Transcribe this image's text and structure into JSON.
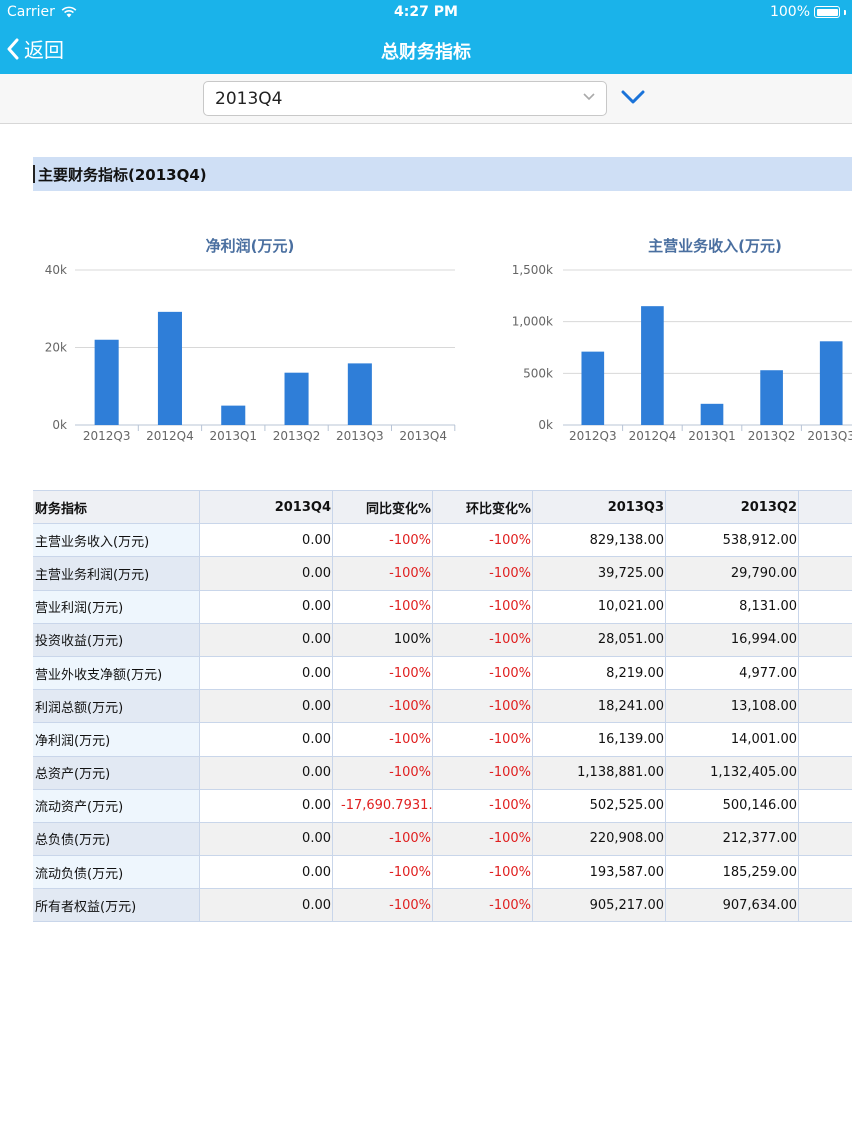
{
  "status_bar": {
    "carrier": "Carrier",
    "time": "4:27 PM",
    "battery": "100%"
  },
  "nav": {
    "back_label": "返回",
    "title": "总财务指标"
  },
  "period_select": {
    "value": "2013Q4"
  },
  "section": {
    "title": "主要财务指标(2013Q4)"
  },
  "colors": {
    "nav_bg": "#1ab3ea",
    "bar": "#2f7ed8",
    "negative": "#e02020",
    "section_bg": "#cfdff5",
    "chevron": "#1a73d9"
  },
  "chart_data": [
    {
      "type": "bar",
      "title": "净利润(万元)",
      "categories": [
        "2012Q3",
        "2012Q4",
        "2013Q1",
        "2013Q2",
        "2013Q3",
        "2013Q4"
      ],
      "values": [
        22000,
        29200,
        5000,
        13500,
        15900,
        0
      ],
      "ylim": [
        0,
        40000
      ],
      "yticks": [
        "0k",
        "20k",
        "40k"
      ],
      "grid": true
    },
    {
      "type": "bar",
      "title": "主营业务收入(万元)",
      "categories": [
        "2012Q3",
        "2012Q4",
        "2013Q1",
        "2013Q2",
        "2013Q3"
      ],
      "values": [
        710000,
        1150000,
        205000,
        530000,
        810000
      ],
      "ylim": [
        0,
        1500000
      ],
      "yticks": [
        "0k",
        "500k",
        "1,000k",
        "1,500k"
      ],
      "grid": true
    }
  ],
  "table": {
    "headers": [
      "财务指标",
      "2013Q4",
      "同比变化%",
      "环比变化%",
      "2013Q3",
      "2013Q2",
      ""
    ],
    "rows": [
      [
        "主营业务收入(万元)",
        "0.00",
        "-100%",
        "-100%",
        "829,138.00",
        "538,912.00",
        ""
      ],
      [
        "主营业务利润(万元)",
        "0.00",
        "-100%",
        "-100%",
        "39,725.00",
        "29,790.00",
        ""
      ],
      [
        "营业利润(万元)",
        "0.00",
        "-100%",
        "-100%",
        "10,021.00",
        "8,131.00",
        ""
      ],
      [
        "投资收益(万元)",
        "0.00",
        "100%",
        "-100%",
        "28,051.00",
        "16,994.00",
        ""
      ],
      [
        "营业外收支净额(万元)",
        "0.00",
        "-100%",
        "-100%",
        "8,219.00",
        "4,977.00",
        ""
      ],
      [
        "利润总额(万元)",
        "0.00",
        "-100%",
        "-100%",
        "18,241.00",
        "13,108.00",
        ""
      ],
      [
        "净利润(万元)",
        "0.00",
        "-100%",
        "-100%",
        "16,139.00",
        "14,001.00",
        ""
      ],
      [
        "总资产(万元)",
        "0.00",
        "-100%",
        "-100%",
        "1,138,881.00",
        "1,132,405.00",
        ""
      ],
      [
        "流动资产(万元)",
        "0.00",
        "-17,690.7931…",
        "-100%",
        "502,525.00",
        "500,146.00",
        ""
      ],
      [
        "总负债(万元)",
        "0.00",
        "-100%",
        "-100%",
        "220,908.00",
        "212,377.00",
        ""
      ],
      [
        "流动负债(万元)",
        "0.00",
        "-100%",
        "-100%",
        "193,587.00",
        "185,259.00",
        ""
      ],
      [
        "所有者权益(万元)",
        "0.00",
        "-100%",
        "-100%",
        "905,217.00",
        "907,634.00",
        ""
      ]
    ]
  }
}
